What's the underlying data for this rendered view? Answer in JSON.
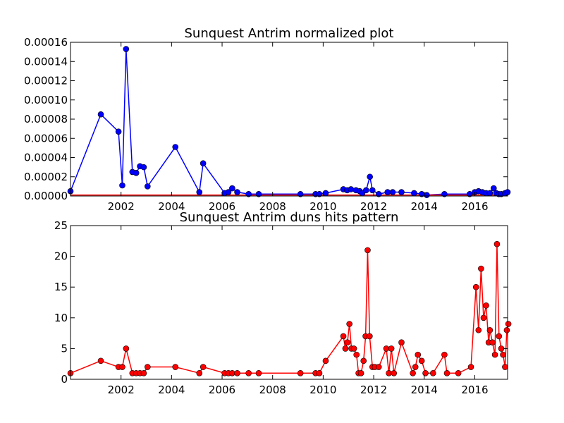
{
  "chart_data": [
    {
      "type": "line",
      "title": "Sunquest Antrim normalized plot",
      "xlabel": "",
      "ylabel": "",
      "xlim": [
        2000.0,
        2017.3
      ],
      "ylim": [
        0,
        0.00016
      ],
      "grid": false,
      "x_ticks": [
        2002,
        2004,
        2006,
        2008,
        2010,
        2012,
        2014,
        2016
      ],
      "y_ticks": [
        0,
        2e-05,
        4e-05,
        6e-05,
        8e-05,
        0.0001,
        0.00012,
        0.00014,
        0.00016
      ],
      "y_tick_labels": [
        "0.00000",
        "0.00002",
        "0.00004",
        "0.00006",
        "0.00008",
        "0.00010",
        "0.00012",
        "0.00014",
        "0.00016"
      ],
      "series": [
        {
          "color": "#0000ff",
          "marker": "circle",
          "x": [
            2000.0,
            2001.2,
            2001.9,
            2002.05,
            2002.2,
            2002.45,
            2002.6,
            2002.75,
            2002.9,
            2003.05,
            2004.15,
            2005.1,
            2005.25,
            2006.1,
            2006.25,
            2006.4,
            2006.6,
            2007.05,
            2007.45,
            2009.1,
            2009.7,
            2009.85,
            2010.1,
            2010.8,
            2010.95,
            2011.1,
            2011.3,
            2011.45,
            2011.55,
            2011.7,
            2011.85,
            2011.95,
            2012.2,
            2012.55,
            2012.75,
            2013.1,
            2013.6,
            2013.9,
            2014.1,
            2014.8,
            2015.8,
            2016.0,
            2016.15,
            2016.3,
            2016.45,
            2016.6,
            2016.75,
            2016.85,
            2016.95,
            2017.05,
            2017.2,
            2017.3
          ],
          "y": [
            5e-06,
            8.5e-05,
            6.7e-05,
            1.1e-05,
            0.000153,
            2.5e-05,
            2.4e-05,
            3.1e-05,
            3e-05,
            1e-05,
            5.1e-05,
            4e-06,
            3.4e-05,
            3e-06,
            4e-06,
            8e-06,
            4e-06,
            2e-06,
            2e-06,
            2e-06,
            2e-06,
            2e-06,
            3e-06,
            7e-06,
            6e-06,
            7e-06,
            6e-06,
            5e-06,
            3e-06,
            6e-06,
            2e-05,
            6e-06,
            2e-06,
            4e-06,
            4e-06,
            4e-06,
            3e-06,
            2e-06,
            1e-06,
            2e-06,
            2e-06,
            4e-06,
            5e-06,
            4e-06,
            3e-06,
            3e-06,
            8e-06,
            3e-06,
            2e-06,
            2e-06,
            3e-06,
            4e-06
          ]
        },
        {
          "color": "#ff0000",
          "marker": "none",
          "x": [
            2000.0,
            2017.3
          ],
          "y": [
            1e-06,
            1e-06
          ]
        }
      ]
    },
    {
      "type": "line",
      "title": "Sunquest Antrim duns hits pattern",
      "xlabel": "",
      "ylabel": "",
      "xlim": [
        2000.0,
        2017.3
      ],
      "ylim": [
        0,
        25
      ],
      "grid": false,
      "x_ticks": [
        2002,
        2004,
        2006,
        2008,
        2010,
        2012,
        2014,
        2016
      ],
      "y_ticks": [
        0,
        5,
        10,
        15,
        20,
        25
      ],
      "y_tick_labels": [
        "0",
        "5",
        "10",
        "15",
        "20",
        "25"
      ],
      "series": [
        {
          "color": "#ff0000",
          "marker": "circle",
          "x": [
            2000.0,
            2001.2,
            2001.9,
            2002.05,
            2002.2,
            2002.45,
            2002.6,
            2002.75,
            2002.9,
            2003.05,
            2004.15,
            2005.1,
            2005.25,
            2006.1,
            2006.25,
            2006.4,
            2006.6,
            2007.05,
            2007.45,
            2009.1,
            2009.7,
            2009.85,
            2010.1,
            2010.8,
            2010.88,
            2010.96,
            2011.04,
            2011.12,
            2011.22,
            2011.32,
            2011.4,
            2011.5,
            2011.6,
            2011.68,
            2011.76,
            2011.84,
            2011.95,
            2012.05,
            2012.2,
            2012.5,
            2012.6,
            2012.7,
            2012.8,
            2013.1,
            2013.55,
            2013.65,
            2013.75,
            2013.9,
            2014.05,
            2014.35,
            2014.8,
            2014.9,
            2015.35,
            2015.85,
            2016.05,
            2016.15,
            2016.25,
            2016.35,
            2016.45,
            2016.55,
            2016.6,
            2016.7,
            2016.8,
            2016.88,
            2016.96,
            2017.05,
            2017.12,
            2017.2,
            2017.27,
            2017.33
          ],
          "y": [
            1,
            3,
            2,
            2,
            5,
            1,
            1,
            1,
            1,
            2,
            2,
            1,
            2,
            1,
            1,
            1,
            1,
            1,
            1,
            1,
            1,
            1,
            3,
            7,
            5,
            6,
            9,
            5,
            5,
            4,
            1,
            1,
            3,
            7,
            21,
            7,
            2,
            2,
            2,
            5,
            1,
            5,
            1,
            6,
            1,
            2,
            4,
            3,
            1,
            1,
            4,
            1,
            1,
            2,
            15,
            8,
            18,
            10,
            12,
            6,
            8,
            6,
            4,
            22,
            7,
            5,
            4,
            2,
            8,
            9
          ]
        }
      ]
    }
  ]
}
